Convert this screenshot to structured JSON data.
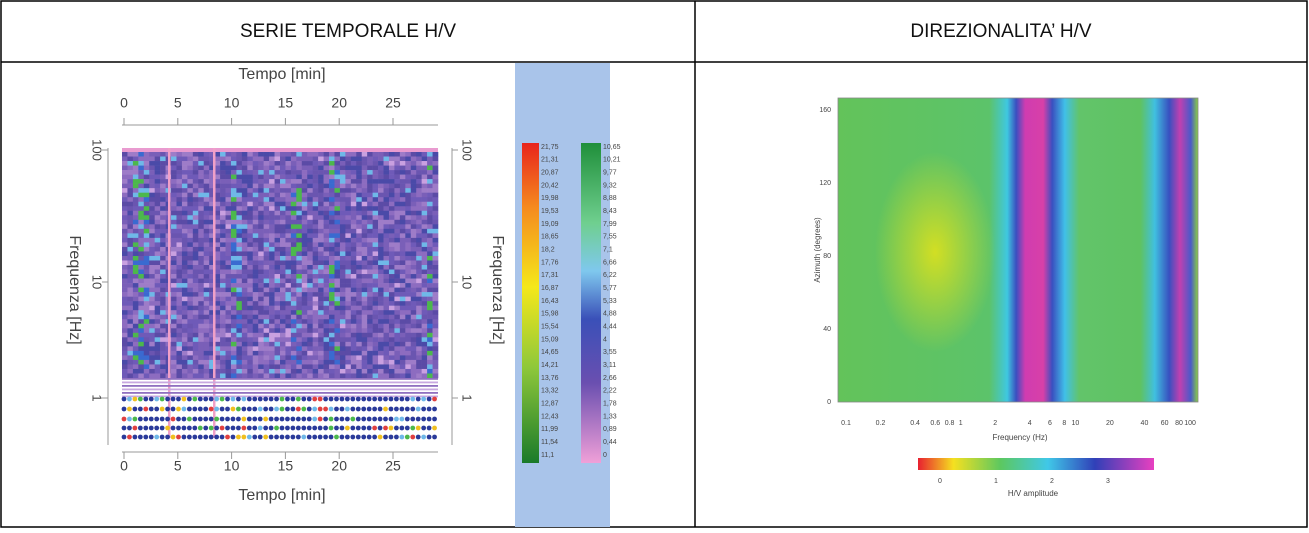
{
  "table": {
    "headers": [
      "SERIE TEMPORALE H/V",
      "DIREZIONALITA’ H/V"
    ],
    "left_figure": {
      "x_axis_title": "Tempo [min]",
      "x_ticks": [
        "0",
        "5",
        "10",
        "15",
        "20",
        "25"
      ],
      "y_axis_title": "Frequenza [Hz]",
      "y_ticks": [
        "100",
        "10",
        "1"
      ],
      "colorbar_high": [
        "21,75",
        "21,31",
        "20,87",
        "20,42",
        "19,98",
        "19,53",
        "19,09",
        "18,65",
        "18,2",
        "17,76",
        "17,31",
        "16,87",
        "16,43",
        "15,98",
        "15,54",
        "15,09",
        "14,65",
        "14,21",
        "13,76",
        "13,32",
        "12,87",
        "12,43",
        "11,99",
        "11,54",
        "11,1"
      ],
      "colorbar_low": [
        "10,65",
        "10,21",
        "9,77",
        "9,32",
        "8,88",
        "8,43",
        "7,99",
        "7,55",
        "7,1",
        "6,66",
        "6,22",
        "5,77",
        "5,33",
        "4,88",
        "4,44",
        "4",
        "3,55",
        "3,11",
        "2,66",
        "2,22",
        "1,78",
        "1,33",
        "0,89",
        "0,44",
        "0"
      ]
    },
    "right_figure": {
      "y_axis_title": "Azimuth (degrees)",
      "y_ticks": [
        0,
        40,
        80,
        120,
        160
      ],
      "x_axis_title": "Frequency (Hz)",
      "x_ticks": [
        0.1,
        0.2,
        0.4,
        0.6,
        0.8,
        1,
        2,
        4,
        6,
        8,
        10,
        20,
        40,
        60,
        80,
        100
      ],
      "colorbar_title": "H/V amplitude",
      "colorbar_ticks": [
        0,
        1,
        2,
        3
      ]
    }
  }
}
